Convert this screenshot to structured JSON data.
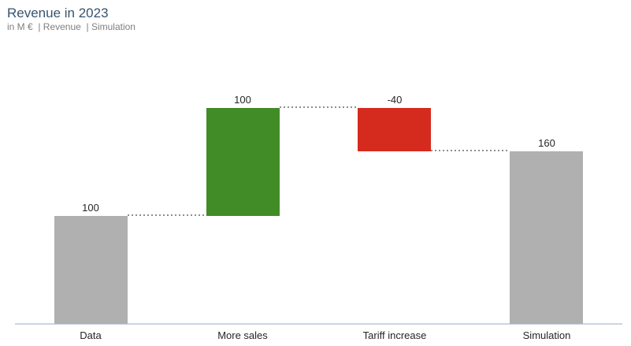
{
  "header": {
    "title": "Revenue in 2023",
    "subtitle": "in M €  | Revenue  | Simulation"
  },
  "colors": {
    "title_text": "#36536f",
    "subtitle_text": "#7f7f7f",
    "label_text": "#262626",
    "bar_neutral": "#b0b0b0",
    "bar_increase": "#428c28",
    "bar_decrease": "#d52b1e",
    "connector": "#8f8f8f",
    "axis_line": "#ccd5e2"
  },
  "chart_data": {
    "type": "bar",
    "subtype": "waterfall",
    "title": "Revenue in 2023",
    "subtitle": "in M € | Revenue | Simulation",
    "unit": "M €",
    "categories": [
      "Data",
      "More sales",
      "Tariff increase",
      "Simulation"
    ],
    "bars": [
      {
        "category": "Data",
        "value": 100,
        "label": "100",
        "kind": "total",
        "cumulative_start": 0,
        "cumulative_end": 100
      },
      {
        "category": "More sales",
        "value": 100,
        "label": "100",
        "kind": "increase",
        "cumulative_start": 100,
        "cumulative_end": 200
      },
      {
        "category": "Tariff increase",
        "value": -40,
        "label": "-40",
        "kind": "decrease",
        "cumulative_start": 200,
        "cumulative_end": 160
      },
      {
        "category": "Simulation",
        "value": 160,
        "label": "160",
        "kind": "total",
        "cumulative_start": 0,
        "cumulative_end": 160
      }
    ],
    "value_range": [
      0,
      200
    ],
    "baseline": 0,
    "grid": false,
    "legend": false,
    "connector_style": "dotted",
    "category_axis_position": "bottom"
  }
}
